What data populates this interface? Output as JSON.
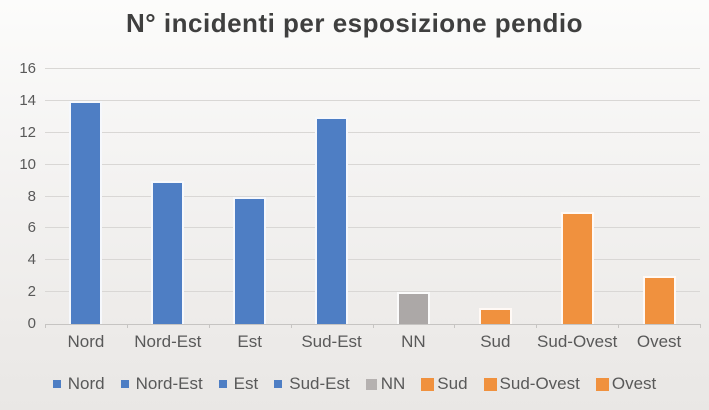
{
  "chart_data": {
    "type": "bar",
    "title": "N° incidenti per esposizione pendio",
    "categories": [
      "Nord",
      "Nord-Est",
      "Est",
      "Sud-Est",
      "NN",
      "Sud",
      "Sud-Ovest",
      "Ovest"
    ],
    "values": [
      14,
      9,
      8,
      13,
      2,
      1,
      7,
      3
    ],
    "bar_colors": [
      "#4e7ec4",
      "#4e7ec4",
      "#4e7ec4",
      "#4e7ec4",
      "#aca8a7",
      "#f0913e",
      "#f0913e",
      "#f0913e"
    ],
    "xlabel": "",
    "ylabel": "",
    "ylim": [
      0,
      16
    ],
    "yticks": [
      0,
      2,
      4,
      6,
      8,
      10,
      12,
      14,
      16
    ],
    "grid": true,
    "legend": {
      "position": "bottom",
      "entries": [
        {
          "label": "Nord",
          "color": "#4e7ec4",
          "size": "s"
        },
        {
          "label": "Nord-Est",
          "color": "#4e7ec4",
          "size": "s"
        },
        {
          "label": "Est",
          "color": "#4e7ec4",
          "size": "s"
        },
        {
          "label": "Sud-Est",
          "color": "#4e7ec4",
          "size": "s"
        },
        {
          "label": "NN",
          "color": "#b5b1b0",
          "size": "m"
        },
        {
          "label": "Sud",
          "color": "#f0913e",
          "size": "l"
        },
        {
          "label": "Sud-Ovest",
          "color": "#f0913e",
          "size": "l"
        },
        {
          "label": "Ovest",
          "color": "#f0913e",
          "size": "l"
        }
      ]
    },
    "colors": {
      "blue_series": "#4e7ec4",
      "gray_series": "#aca8a7",
      "orange_series": "#f0913e",
      "gridline": "#d9d7d5",
      "axis_text": "#595959",
      "title_text": "#3f3f3f"
    }
  }
}
